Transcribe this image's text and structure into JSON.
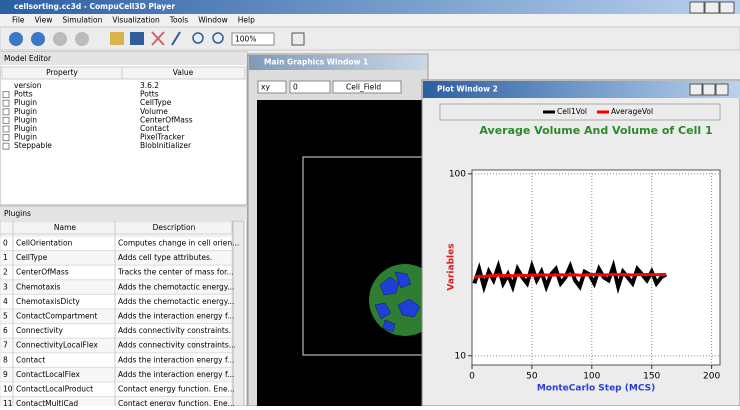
{
  "app": {
    "title": "cellsorting.cc3d - CompuCell3D Player",
    "menu": [
      "File",
      "View",
      "Simulation",
      "Visualization",
      "Tools",
      "Window",
      "Help"
    ],
    "zoom": "100%"
  },
  "model_editor": {
    "title": "Model Editor",
    "columns": [
      "Property",
      "Value"
    ],
    "rows": [
      [
        "version",
        "3.6.2"
      ],
      [
        "Potts",
        "Potts"
      ],
      [
        "Plugin",
        "CellType"
      ],
      [
        "Plugin",
        "Volume"
      ],
      [
        "Plugin",
        "CenterOfMass"
      ],
      [
        "Plugin",
        "Contact"
      ],
      [
        "Plugin",
        "PixelTracker"
      ],
      [
        "Steppable",
        "BlobInitializer"
      ]
    ]
  },
  "plugins": {
    "title": "Plugins",
    "columns": [
      "Name",
      "Description"
    ],
    "rows": [
      [
        "0",
        "CellOrientation",
        "Computes change in cell orien..."
      ],
      [
        "1",
        "CellType",
        "Adds cell type attributes."
      ],
      [
        "2",
        "CenterOfMass",
        "Tracks the center of mass for..."
      ],
      [
        "3",
        "Chemotaxis",
        "Adds the chemotactic energy..."
      ],
      [
        "4",
        "ChemotaxisDicty",
        "Adds the chemotactic energy..."
      ],
      [
        "5",
        "ContactCompartment",
        "Adds the interaction energy f..."
      ],
      [
        "6",
        "Connectivity",
        "Adds connectivity constraints."
      ],
      [
        "7",
        "ConnectivityLocalFlex",
        "Adds connectivity constraints..."
      ],
      [
        "8",
        "Contact",
        "Adds the interaction energy f..."
      ],
      [
        "9",
        "ContactLocalFlex",
        "Adds the interaction energy f..."
      ],
      [
        "10",
        "ContactLocalProduct",
        "Contact energy function. Ene..."
      ],
      [
        "11",
        "ContactMultiCad",
        "Contact energy function. Ene..."
      ]
    ]
  },
  "graphics_window": {
    "title": "Main Graphics Window 1",
    "view": "xy",
    "slice": "0",
    "field": "Cell_Field"
  },
  "plot_window": {
    "title": "Plot Window 2"
  },
  "chart_data": {
    "type": "line",
    "title": "Average Volume And Volume of Cell 1",
    "xlabel": "MonteCarlo Step (MCS)",
    "ylabel": "Variables",
    "x": [
      2,
      6,
      10,
      14,
      18,
      22,
      26,
      30,
      34,
      38,
      42,
      46,
      50,
      54,
      58,
      62,
      66,
      70,
      74,
      78,
      82,
      86,
      90,
      94,
      98,
      102,
      106,
      110,
      114,
      118,
      122,
      126,
      130,
      134,
      138,
      142,
      146,
      150,
      154,
      158,
      162
    ],
    "series": [
      {
        "name": "Cell1Vol",
        "color": "#000000",
        "values": [
          25,
          30,
          24,
          29,
          26,
          31,
          25,
          28,
          24,
          30,
          27,
          25,
          31,
          26,
          29,
          24,
          28,
          30,
          25,
          27,
          31,
          26,
          24,
          29,
          28,
          25,
          30,
          27,
          26,
          31,
          24,
          29,
          27,
          25,
          30,
          28,
          26,
          29,
          25,
          27,
          28
        ]
      },
      {
        "name": "AverageVol",
        "color": "#ff0000",
        "values": [
          27.0,
          27.4,
          27.2,
          27.6,
          27.5,
          27.8,
          27.6,
          27.7,
          27.5,
          27.8,
          27.7,
          27.6,
          27.8,
          27.7,
          27.9,
          27.8,
          27.7,
          27.8,
          27.9,
          27.8,
          27.8,
          27.9,
          27.7,
          27.8,
          27.9,
          28.0,
          27.9,
          27.8,
          27.9,
          28.0,
          27.9,
          28.0,
          27.9,
          27.8,
          28.0,
          27.9,
          28.0,
          28.0,
          27.9,
          28.0,
          28.0
        ]
      }
    ],
    "xlim": [
      0,
      207
    ],
    "xticks": [
      0,
      50,
      100,
      150,
      200
    ],
    "ylim": [
      8.9,
      105
    ],
    "yticks": [
      10,
      100
    ],
    "log_y": true,
    "grid": true,
    "legend": "top"
  }
}
